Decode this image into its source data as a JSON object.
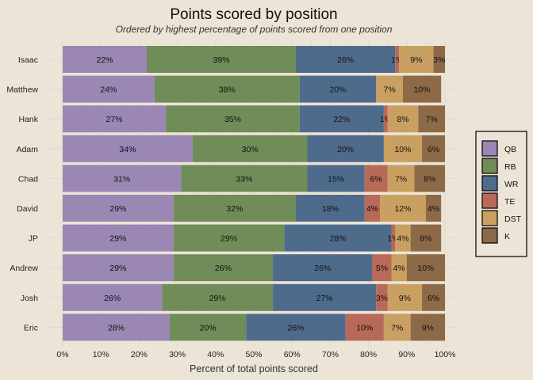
{
  "chart_data": {
    "type": "bar",
    "orientation": "horizontal",
    "stacked": true,
    "title": "Points scored by position",
    "subtitle": "Ordered by highest percentage of points scored from one position",
    "xlabel": "Percent of total points scored",
    "ylabel": "",
    "xlim": [
      0,
      100
    ],
    "x_ticks": [
      "0%",
      "10%",
      "20%",
      "30%",
      "40%",
      "50%",
      "60%",
      "70%",
      "80%",
      "90%",
      "100%"
    ],
    "grid": true,
    "legend_position": "right",
    "categories": [
      "Isaac",
      "Matthew",
      "Hank",
      "Adam",
      "Chad",
      "David",
      "JP",
      "Andrew",
      "Josh",
      "Eric"
    ],
    "series": [
      {
        "name": "QB",
        "color": "#9a87b4",
        "values": [
          22,
          24,
          27,
          34,
          31,
          29,
          29,
          29,
          26,
          28
        ]
      },
      {
        "name": "RB",
        "color": "#708c58",
        "values": [
          39,
          38,
          35,
          30,
          33,
          32,
          29,
          26,
          29,
          20
        ]
      },
      {
        "name": "WR",
        "color": "#4f6b8c",
        "values": [
          26,
          20,
          22,
          20,
          15,
          18,
          28,
          26,
          27,
          26
        ]
      },
      {
        "name": "TE",
        "color": "#b86a58",
        "values": [
          1,
          0,
          1,
          0,
          6,
          4,
          1,
          5,
          3,
          10
        ]
      },
      {
        "name": "DST",
        "color": "#c9a061",
        "values": [
          9,
          7,
          8,
          10,
          7,
          12,
          4,
          4,
          9,
          7
        ]
      },
      {
        "name": "K",
        "color": "#8c6a48",
        "values": [
          3,
          10,
          7,
          6,
          8,
          4,
          8,
          10,
          6,
          9
        ]
      }
    ]
  }
}
